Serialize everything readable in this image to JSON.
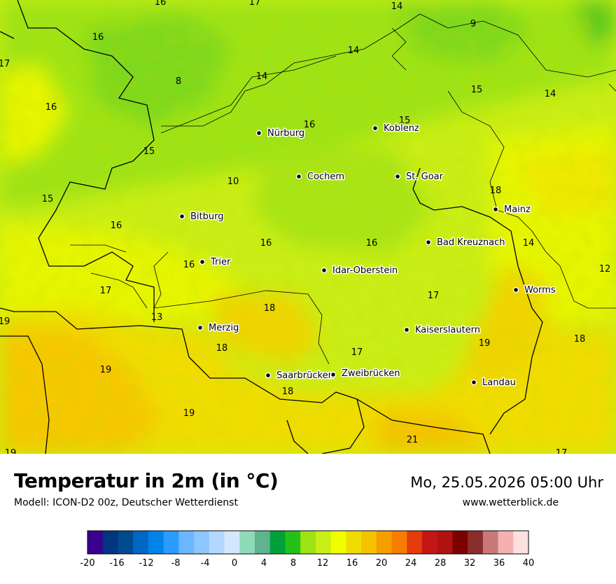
{
  "title": "Temperatur in 2m (in °C)",
  "model": "Modell: ICON-D2 00z, Deutscher Wetterdienst",
  "datetime": "Mo, 25.05.2026 05:00 Uhr",
  "website": "www.wetterblick.de",
  "cities": [
    "Nürburg",
    "Koblenz",
    "Cochem",
    "St. Goar",
    "Mainz",
    "Bitburg",
    "Bad Kreuznach",
    "Trier",
    "Idar-Oberstein",
    "Worms",
    "Merzig",
    "Kaiserslautern",
    "Saarbrücken",
    "Zweibrücken",
    "Landau"
  ],
  "temperatures": [
    "16",
    "17",
    "14",
    "9",
    "16",
    "14",
    "17",
    "8",
    "14",
    "15",
    "14",
    "16",
    "16",
    "15",
    "15",
    "10",
    "18",
    "15",
    "16",
    "16",
    "14",
    "12",
    "16",
    "16",
    "17",
    "13",
    "18",
    "19",
    "18",
    "17",
    "19",
    "18",
    "19",
    "18",
    "21",
    "19",
    "17"
  ],
  "legend": {
    "ticks": [
      "-20",
      "-16",
      "-12",
      "-8",
      "-4",
      "0",
      "4",
      "8",
      "12",
      "16",
      "20",
      "24",
      "28",
      "32",
      "36",
      "40"
    ],
    "colors": [
      "#3a0090",
      "#00357f",
      "#004a8f",
      "#0066c4",
      "#0083e8",
      "#2a9bff",
      "#6cb6ff",
      "#8ec6ff",
      "#b3d8ff",
      "#d3e8ff",
      "#8fdbb9",
      "#5fb38f",
      "#00a13a",
      "#24c218",
      "#9ee314",
      "#c9ee16",
      "#f0ff00",
      "#f0dc00",
      "#f5c200",
      "#f59e00",
      "#f57d00",
      "#e63c0a",
      "#c41614",
      "#b01212",
      "#7d0000",
      "#8a2c2c",
      "#c97979",
      "#f5b0b0",
      "#ffe0e0"
    ]
  }
}
